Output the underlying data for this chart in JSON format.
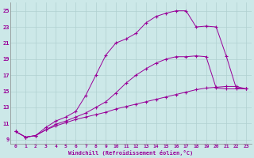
{
  "xlabel": "Windchill (Refroidissement éolien,°C)",
  "background_color": "#cce8e8",
  "line_color": "#990099",
  "grid_color": "#b0d0d0",
  "xlim": [
    -0.5,
    23.5
  ],
  "ylim": [
    8.5,
    26.0
  ],
  "xticks": [
    0,
    1,
    2,
    3,
    4,
    5,
    6,
    7,
    8,
    9,
    10,
    11,
    12,
    13,
    14,
    15,
    16,
    17,
    18,
    19,
    20,
    21,
    22,
    23
  ],
  "yticks": [
    9,
    11,
    13,
    15,
    17,
    19,
    21,
    23,
    25
  ],
  "curve1_x": [
    0,
    1,
    2,
    3,
    4,
    5,
    6,
    7,
    8,
    9,
    10,
    11,
    12,
    13,
    14,
    15,
    16,
    17,
    18,
    19,
    20,
    21,
    22,
    23
  ],
  "curve1_y": [
    10.0,
    9.3,
    9.5,
    10.2,
    10.7,
    11.1,
    11.5,
    11.8,
    12.1,
    12.4,
    12.8,
    13.1,
    13.4,
    13.7,
    14.0,
    14.3,
    14.6,
    14.9,
    15.2,
    15.4,
    15.5,
    15.6,
    15.6,
    15.3
  ],
  "curve2_x": [
    0,
    1,
    2,
    3,
    4,
    5,
    6,
    7,
    8,
    9,
    10,
    11,
    12,
    13,
    14,
    15,
    16,
    17,
    18,
    19,
    20,
    21,
    22,
    23
  ],
  "curve2_y": [
    10.0,
    9.3,
    9.5,
    10.2,
    10.9,
    11.3,
    11.8,
    12.3,
    13.0,
    13.7,
    14.8,
    16.0,
    17.0,
    17.8,
    18.5,
    19.0,
    19.3,
    19.3,
    19.4,
    19.3,
    15.4,
    15.3,
    15.3,
    15.3
  ],
  "curve3_x": [
    0,
    1,
    2,
    3,
    4,
    5,
    6,
    7,
    8,
    9,
    10,
    11,
    12,
    13,
    14,
    15,
    16,
    17,
    18,
    19,
    20,
    21,
    22,
    23
  ],
  "curve3_y": [
    10.0,
    9.3,
    9.5,
    10.5,
    11.3,
    11.8,
    12.5,
    14.5,
    17.0,
    19.5,
    21.0,
    21.5,
    22.2,
    23.5,
    24.3,
    24.7,
    25.0,
    25.0,
    23.0,
    23.1,
    23.0,
    19.4,
    15.4,
    15.3
  ]
}
